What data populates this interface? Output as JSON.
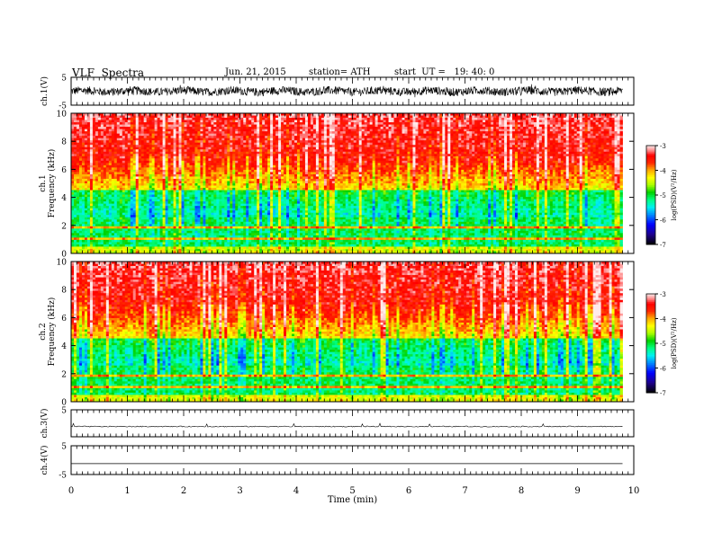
{
  "header": {
    "title": "VLF  Spectra",
    "date": "Jun. 21, 2015",
    "station": "station= ATH",
    "start": "start  UT =   19: 40: 0"
  },
  "colors": {
    "spectrogram_scale": [
      "#000000",
      "#1a0080",
      "#0000ff",
      "#00a0ff",
      "#00ffff",
      "#00ff80",
      "#00e000",
      "#a0ff00",
      "#ffff00",
      "#ffc000",
      "#ff6000",
      "#ff0000",
      "#ff8080",
      "#ffd0d0",
      "#ffffff"
    ]
  },
  "chart_data": [
    {
      "type": "line",
      "name": "ch1-waveform",
      "ylabel": "ch.1(V)",
      "ylim": [
        -5,
        5
      ],
      "yticks": [
        "5",
        "-5"
      ],
      "xlim": [
        0,
        10
      ],
      "signal": "dense noisy waveform about 0 V, amplitude roughly ±2 V"
    },
    {
      "type": "heatmap",
      "name": "ch1-spectrogram",
      "ylabel": "ch.1\nFrequency  (kHz)",
      "ylim": [
        0,
        10
      ],
      "yticks": [
        "0",
        "2",
        "4",
        "6",
        "8",
        "10"
      ],
      "xlim": [
        0,
        10
      ],
      "data_end_min": 9.8,
      "colorbar": {
        "label": "log(PSD)(V²/Hz)",
        "range": [
          -7,
          -3
        ],
        "ticks": [
          "-3",
          "-4",
          "-5",
          "-6",
          "-7"
        ]
      }
    },
    {
      "type": "heatmap",
      "name": "ch2-spectrogram",
      "ylabel": "ch.2\nFrequency  (kHz)",
      "ylim": [
        0,
        10
      ],
      "yticks": [
        "0",
        "2",
        "4",
        "6",
        "8",
        "10"
      ],
      "xlim": [
        0,
        10
      ],
      "data_end_min": 9.8,
      "colorbar": {
        "label": "log(PSD)(V²/Hz)",
        "range": [
          -7,
          -3
        ],
        "ticks": [
          "-3",
          "-4",
          "-5",
          "-6",
          "-7"
        ]
      }
    },
    {
      "type": "line",
      "name": "ch3-waveform",
      "ylabel": "ch.3(V)",
      "ylim": [
        -5,
        5
      ],
      "yticks": [
        "5"
      ],
      "signal": "near-flat trace slightly below 0 V with small spikes"
    },
    {
      "type": "line",
      "name": "ch4-waveform",
      "ylabel": "ch.4(V)",
      "ylim": [
        -5,
        5
      ],
      "yticks": [
        "5",
        "-5"
      ],
      "signal": "flat line at about -1 V"
    }
  ],
  "xaxis": {
    "label": "Time  (min)",
    "range": [
      0,
      10
    ],
    "ticks": [
      "0",
      "1",
      "2",
      "3",
      "4",
      "5",
      "6",
      "7",
      "8",
      "9",
      "10"
    ]
  }
}
